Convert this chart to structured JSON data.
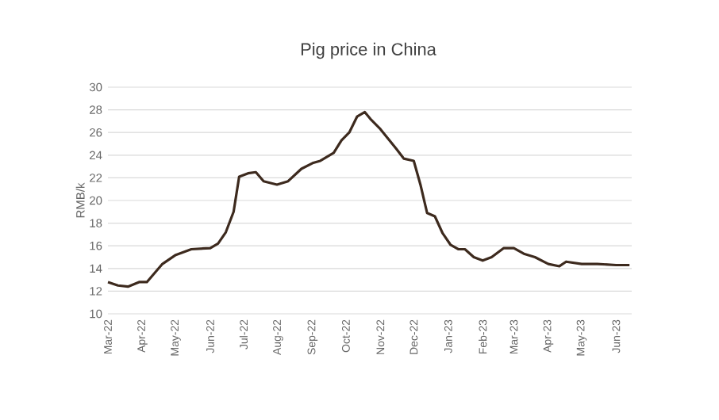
{
  "chart_data": {
    "type": "line",
    "title": "Pig price in China",
    "ylabel": "RMB/k",
    "x": [
      "2022-03-01",
      "2022-03-10",
      "2022-03-19",
      "2022-03-29",
      "2022-04-05",
      "2022-04-12",
      "2022-04-19",
      "2022-05-01",
      "2022-05-15",
      "2022-06-01",
      "2022-06-08",
      "2022-06-15",
      "2022-06-22",
      "2022-06-27",
      "2022-07-05",
      "2022-07-12",
      "2022-07-19",
      "2022-07-31",
      "2022-08-10",
      "2022-08-22",
      "2022-09-01",
      "2022-09-08",
      "2022-09-20",
      "2022-09-27",
      "2022-10-04",
      "2022-10-11",
      "2022-10-18",
      "2022-10-23",
      "2022-11-01",
      "2022-11-15",
      "2022-11-22",
      "2022-12-01",
      "2022-12-07",
      "2022-12-13",
      "2022-12-20",
      "2022-12-27",
      "2023-01-03",
      "2023-01-10",
      "2023-01-16",
      "2023-01-24",
      "2023-02-01",
      "2023-02-09",
      "2023-02-20",
      "2023-03-01",
      "2023-03-10",
      "2023-03-20",
      "2023-04-01",
      "2023-04-11",
      "2023-04-17",
      "2023-05-01",
      "2023-05-15",
      "2023-06-01",
      "2023-06-13"
    ],
    "series": [
      {
        "color": "#3d2a1e",
        "values": [
          12.8,
          12.5,
          12.4,
          12.8,
          12.8,
          13.6,
          14.4,
          15.2,
          15.7,
          15.8,
          16.2,
          17.2,
          19.0,
          22.1,
          22.4,
          22.5,
          21.7,
          21.4,
          21.7,
          22.8,
          23.3,
          23.5,
          24.2,
          25.3,
          26.0,
          27.4,
          27.8,
          27.2,
          26.3,
          24.6,
          23.7,
          23.5,
          21.4,
          18.9,
          18.6,
          17.1,
          16.1,
          15.7,
          15.7,
          15.0,
          14.7,
          15.0,
          15.8,
          15.8,
          15.3,
          15.0,
          14.4,
          14.2,
          14.6,
          14.4,
          14.4,
          14.3,
          14.3
        ]
      }
    ],
    "xlim": [
      "2022-03-01",
      "2023-06-15"
    ],
    "xticks": [
      {
        "value": "2022-03-01",
        "label": "Mar-22"
      },
      {
        "value": "2022-04-01",
        "label": "Apr-22"
      },
      {
        "value": "2022-05-01",
        "label": "May-22"
      },
      {
        "value": "2022-06-01",
        "label": "Jun-22"
      },
      {
        "value": "2022-07-01",
        "label": "Jul-22"
      },
      {
        "value": "2022-08-01",
        "label": "Aug-22"
      },
      {
        "value": "2022-09-01",
        "label": "Sep-22"
      },
      {
        "value": "2022-10-01",
        "label": "Oct-22"
      },
      {
        "value": "2022-11-01",
        "label": "Nov-22"
      },
      {
        "value": "2022-12-01",
        "label": "Dec-22"
      },
      {
        "value": "2023-01-01",
        "label": "Jan-23"
      },
      {
        "value": "2023-02-01",
        "label": "Feb-23"
      },
      {
        "value": "2023-03-01",
        "label": "Mar-23"
      },
      {
        "value": "2023-04-01",
        "label": "Apr-23"
      },
      {
        "value": "2023-05-01",
        "label": "May-23"
      },
      {
        "value": "2023-06-01",
        "label": "Jun-23"
      }
    ],
    "ylim": [
      10,
      30
    ],
    "yticks": [
      10,
      12,
      14,
      16,
      18,
      20,
      22,
      24,
      26,
      28,
      30
    ],
    "grid": "y",
    "marker": "none",
    "line_style": "solid"
  }
}
